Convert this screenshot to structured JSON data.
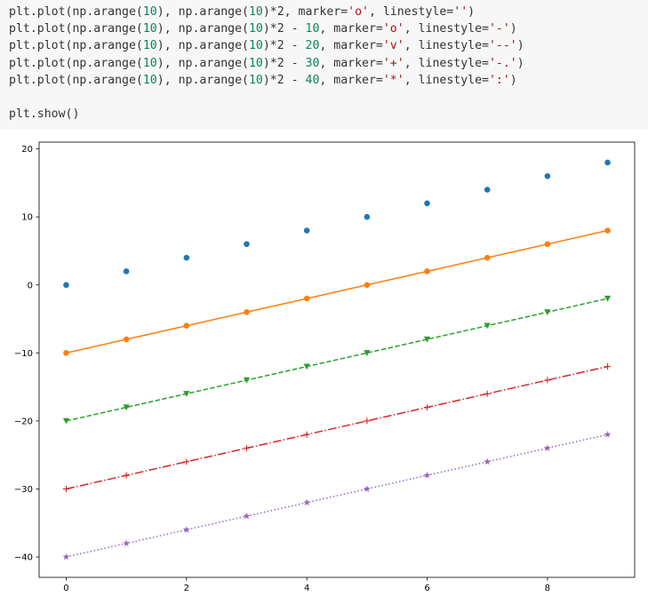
{
  "code": {
    "lines": [
      [
        {
          "t": "plt.plot(np.arange("
        },
        {
          "t": "10",
          "k": "num"
        },
        {
          "t": "), np.arange("
        },
        {
          "t": "10",
          "k": "num"
        },
        {
          "t": ")*2, marker="
        },
        {
          "t": "'o'",
          "k": "str"
        },
        {
          "t": ", linestyle="
        },
        {
          "t": "''",
          "k": "str"
        },
        {
          "t": ")"
        }
      ],
      [
        {
          "t": "plt.plot(np.arange("
        },
        {
          "t": "10",
          "k": "num"
        },
        {
          "t": "), np.arange("
        },
        {
          "t": "10",
          "k": "num"
        },
        {
          "t": ")*2 - "
        },
        {
          "t": "10",
          "k": "num"
        },
        {
          "t": ", marker="
        },
        {
          "t": "'o'",
          "k": "str"
        },
        {
          "t": ", linestyle="
        },
        {
          "t": "'-'",
          "k": "str"
        },
        {
          "t": ")"
        }
      ],
      [
        {
          "t": "plt.plot(np.arange("
        },
        {
          "t": "10",
          "k": "num"
        },
        {
          "t": "), np.arange("
        },
        {
          "t": "10",
          "k": "num"
        },
        {
          "t": ")*2 - "
        },
        {
          "t": "20",
          "k": "num"
        },
        {
          "t": ", marker="
        },
        {
          "t": "'v'",
          "k": "str"
        },
        {
          "t": ", linestyle="
        },
        {
          "t": "'--'",
          "k": "str"
        },
        {
          "t": ")"
        }
      ],
      [
        {
          "t": "plt.plot(np.arange("
        },
        {
          "t": "10",
          "k": "num"
        },
        {
          "t": "), np.arange("
        },
        {
          "t": "10",
          "k": "num"
        },
        {
          "t": ")*2 - "
        },
        {
          "t": "30",
          "k": "num"
        },
        {
          "t": ", marker="
        },
        {
          "t": "'+'",
          "k": "str"
        },
        {
          "t": ", linestyle="
        },
        {
          "t": "'-.'",
          "k": "str"
        },
        {
          "t": ")"
        }
      ],
      [
        {
          "t": "plt.plot(np.arange("
        },
        {
          "t": "10",
          "k": "num"
        },
        {
          "t": "), np.arange("
        },
        {
          "t": "10",
          "k": "num"
        },
        {
          "t": ")*2 - "
        },
        {
          "t": "40",
          "k": "num"
        },
        {
          "t": ", marker="
        },
        {
          "t": "'*'",
          "k": "str"
        },
        {
          "t": ", linestyle="
        },
        {
          "t": "':'",
          "k": "str"
        },
        {
          "t": ")"
        }
      ],
      [],
      [
        {
          "t": "plt.show()"
        }
      ]
    ]
  },
  "chart_data": {
    "type": "line",
    "x": [
      0,
      1,
      2,
      3,
      4,
      5,
      6,
      7,
      8,
      9
    ],
    "xlim": [
      -0.45,
      9.45
    ],
    "ylim": [
      -43,
      21
    ],
    "xticks": [
      0,
      2,
      4,
      6,
      8
    ],
    "yticks": [
      20,
      10,
      0,
      -10,
      -20,
      -30,
      -40
    ],
    "xtick_labels": [
      "0",
      "2",
      "4",
      "6",
      "8"
    ],
    "ytick_labels": [
      "20",
      "10",
      "0",
      "−10",
      "−20",
      "−30",
      "−40"
    ],
    "grid": false,
    "series": [
      {
        "values": [
          0,
          2,
          4,
          6,
          8,
          10,
          12,
          14,
          16,
          18
        ],
        "marker": "o",
        "linestyle": "none",
        "color": "#1f77b4"
      },
      {
        "values": [
          -10,
          -8,
          -6,
          -4,
          -2,
          0,
          2,
          4,
          6,
          8
        ],
        "marker": "o",
        "linestyle": "solid",
        "color": "#ff7f0e"
      },
      {
        "values": [
          -20,
          -18,
          -16,
          -14,
          -12,
          -10,
          -8,
          -6,
          -4,
          -2
        ],
        "marker": "v",
        "linestyle": "dashed",
        "color": "#2ca02c"
      },
      {
        "values": [
          -30,
          -28,
          -26,
          -24,
          -22,
          -20,
          -18,
          -16,
          -14,
          -12
        ],
        "marker": "+",
        "linestyle": "dashdot",
        "color": "#d62728"
      },
      {
        "values": [
          -40,
          -38,
          -36,
          -34,
          -32,
          -30,
          -28,
          -26,
          -24,
          -22
        ],
        "marker": "*",
        "linestyle": "dotted",
        "color": "#9467bd"
      }
    ]
  }
}
